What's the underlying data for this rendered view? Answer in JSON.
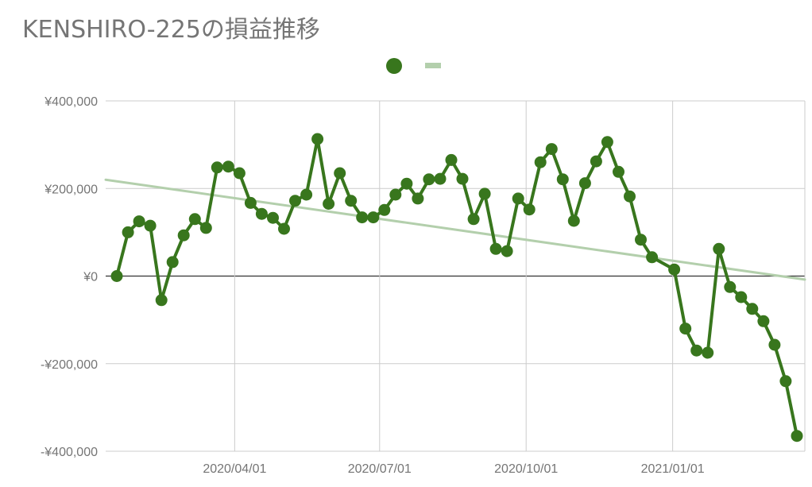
{
  "title": "KENSHIRO-225の損益推移",
  "colors": {
    "series": "#38761d",
    "trend": "#b3cfac",
    "grid": "#cccccc",
    "zero": "#333333",
    "text": "#757575"
  },
  "chart_data": {
    "type": "line",
    "title": "KENSHIRO-225の損益推移",
    "xlabel": "",
    "ylabel": "",
    "ylim": [
      -400000,
      400000
    ],
    "y_ticks": [
      "¥400,000",
      "¥200,000",
      "¥0",
      "-¥200,000",
      "-¥400,000"
    ],
    "y_tick_values": [
      400000,
      200000,
      0,
      -200000,
      -400000
    ],
    "x_ticks": [
      "2020/04/01",
      "2020/07/01",
      "2020/10/01",
      "2021/01/01"
    ],
    "x_tick_dates": [
      "2020-04-01",
      "2020-07-01",
      "2020-10-01",
      "2021-01-01"
    ],
    "x_range": [
      "2020-01-11",
      "2021-03-25"
    ],
    "grid": true,
    "legend": "top-center",
    "series": [
      {
        "type": "line",
        "points": [
          [
            "2020-01-18",
            0
          ],
          [
            "2020-01-25",
            100000
          ],
          [
            "2020-02-01",
            125000
          ],
          [
            "2020-02-08",
            115000
          ],
          [
            "2020-02-15",
            -55000
          ],
          [
            "2020-02-22",
            32000
          ],
          [
            "2020-02-29",
            93000
          ],
          [
            "2020-03-07",
            130000
          ],
          [
            "2020-03-14",
            110000
          ],
          [
            "2020-03-21",
            248000
          ],
          [
            "2020-03-28",
            250000
          ],
          [
            "2020-04-04",
            235000
          ],
          [
            "2020-04-11",
            167000
          ],
          [
            "2020-04-18",
            142000
          ],
          [
            "2020-04-25",
            133000
          ],
          [
            "2020-05-02",
            108000
          ],
          [
            "2020-05-09",
            172000
          ],
          [
            "2020-05-16",
            186000
          ],
          [
            "2020-05-23",
            313000
          ],
          [
            "2020-05-30",
            165000
          ],
          [
            "2020-06-06",
            235000
          ],
          [
            "2020-06-13",
            172000
          ],
          [
            "2020-06-20",
            134000
          ],
          [
            "2020-06-27",
            134000
          ],
          [
            "2020-07-04",
            151000
          ],
          [
            "2020-07-11",
            186000
          ],
          [
            "2020-07-18",
            211000
          ],
          [
            "2020-07-25",
            177000
          ],
          [
            "2020-08-01",
            221000
          ],
          [
            "2020-08-08",
            222000
          ],
          [
            "2020-08-15",
            265000
          ],
          [
            "2020-08-22",
            222000
          ],
          [
            "2020-08-29",
            130000
          ],
          [
            "2020-09-05",
            188000
          ],
          [
            "2020-09-12",
            62000
          ],
          [
            "2020-09-19",
            57000
          ],
          [
            "2020-09-26",
            177000
          ],
          [
            "2020-10-03",
            152000
          ],
          [
            "2020-10-10",
            260000
          ],
          [
            "2020-10-17",
            290000
          ],
          [
            "2020-10-24",
            221000
          ],
          [
            "2020-10-31",
            126000
          ],
          [
            "2020-11-07",
            212000
          ],
          [
            "2020-11-14",
            262000
          ],
          [
            "2020-11-21",
            306000
          ],
          [
            "2020-11-28",
            238000
          ],
          [
            "2020-12-05",
            182000
          ],
          [
            "2020-12-12",
            83000
          ],
          [
            "2020-12-19",
            43000
          ],
          [
            "2021-01-02",
            15000
          ],
          [
            "2021-01-09",
            -120000
          ],
          [
            "2021-01-16",
            -170000
          ],
          [
            "2021-01-23",
            -175000
          ],
          [
            "2021-01-30",
            62000
          ],
          [
            "2021-02-06",
            -25000
          ],
          [
            "2021-02-13",
            -48000
          ],
          [
            "2021-02-20",
            -75000
          ],
          [
            "2021-02-27",
            -103000
          ],
          [
            "2021-03-06",
            -157000
          ],
          [
            "2021-03-13",
            -240000
          ],
          [
            "2021-03-20",
            -365000
          ]
        ]
      },
      {
        "type": "trendline",
        "points": [
          [
            "2020-01-11",
            220000
          ],
          [
            "2021-03-25",
            -8000
          ]
        ]
      }
    ]
  }
}
